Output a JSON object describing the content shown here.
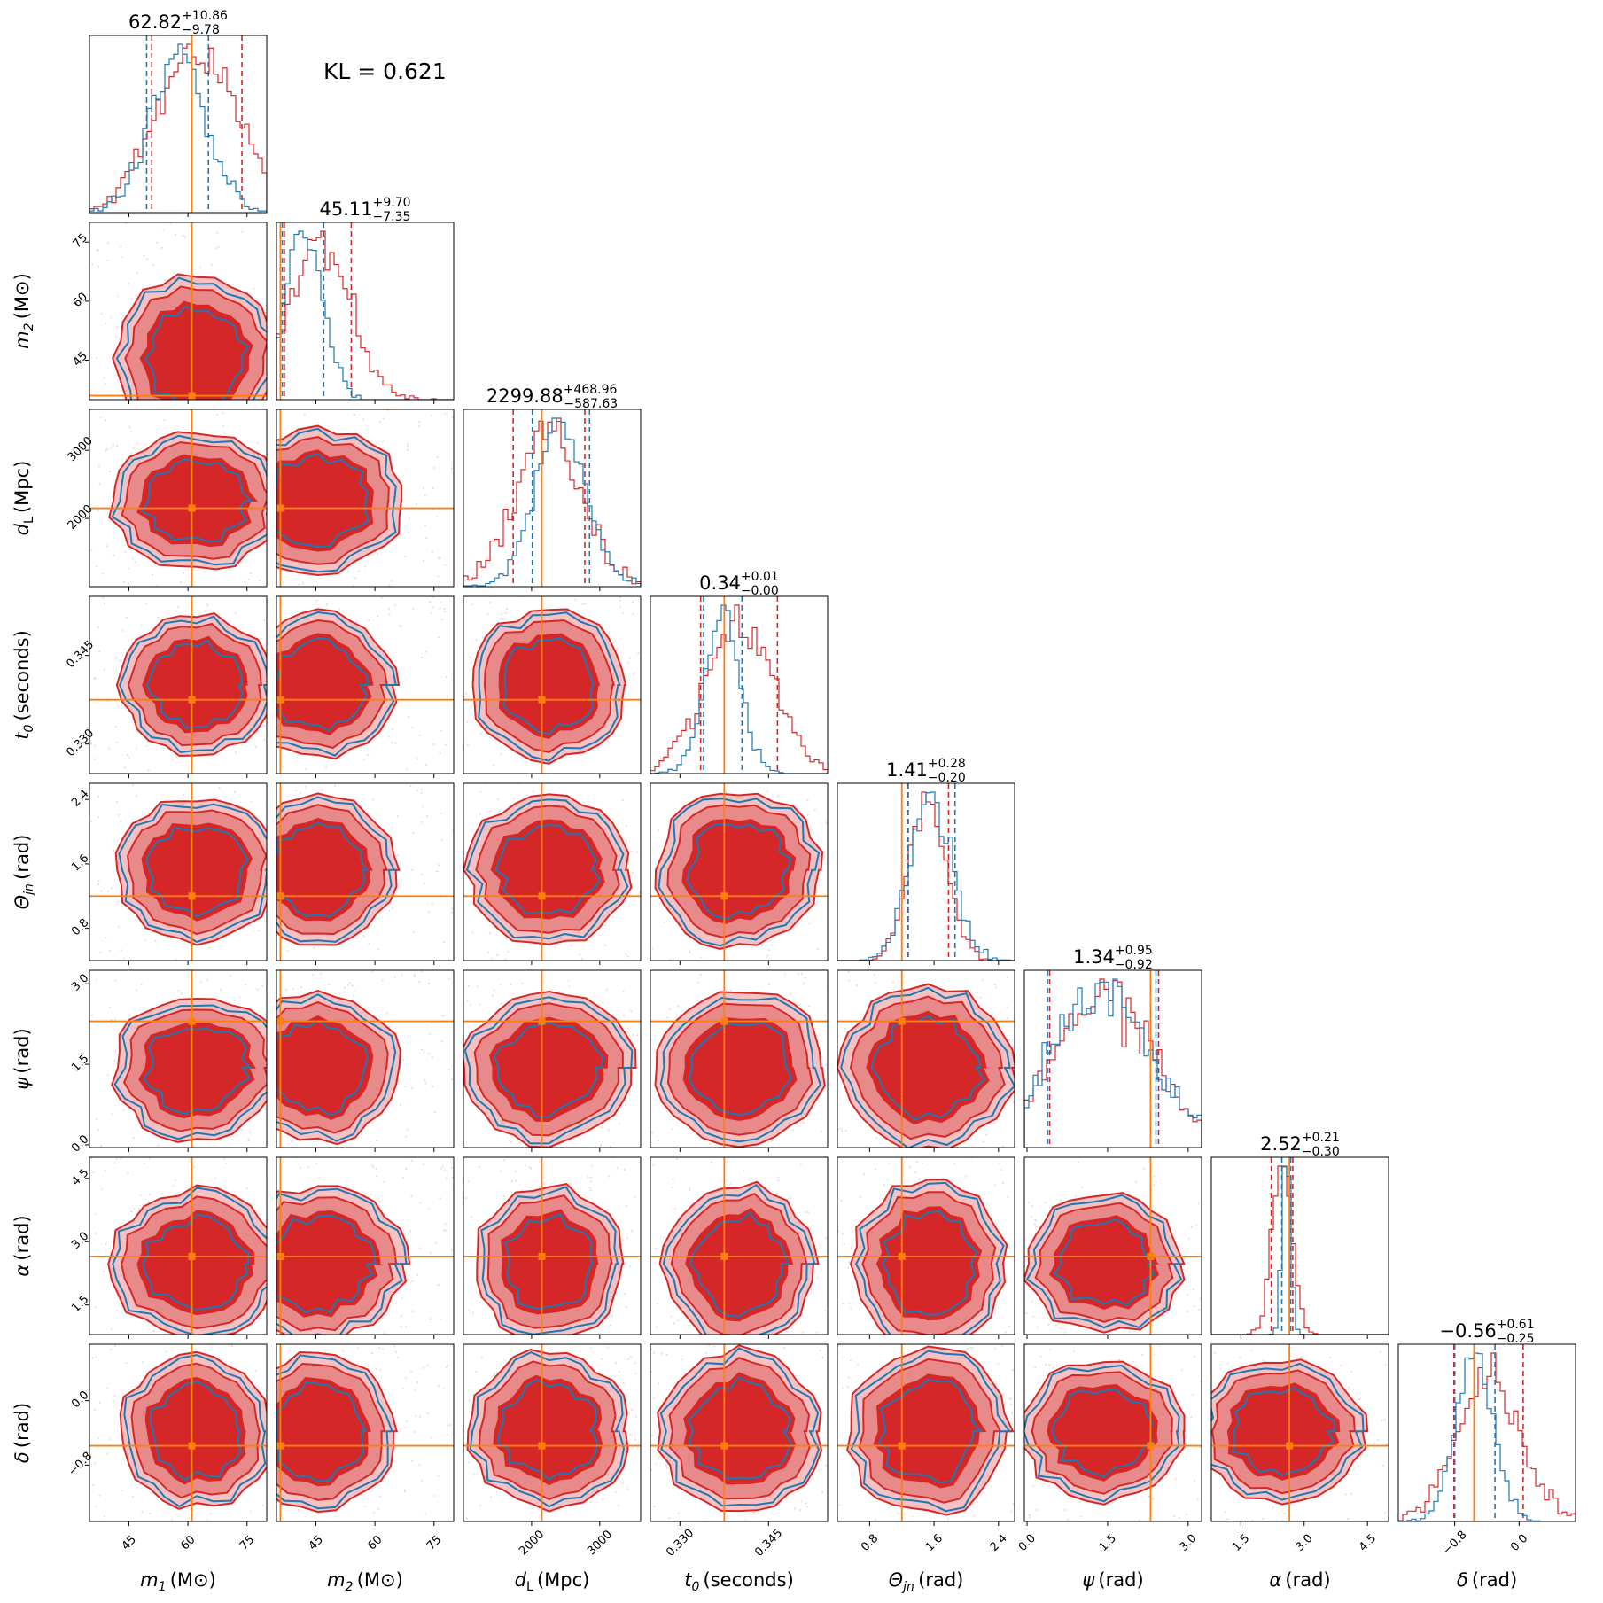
{
  "annotation": {
    "text": "KL = 0.621"
  },
  "colors": {
    "series_a": "#d62728",
    "series_b": "#1f77b4",
    "truth": "#ff7f0e"
  },
  "chart_data": {
    "type": "corner",
    "series": [
      {
        "color": "#d62728"
      },
      {
        "color": "#1f77b4"
      }
    ],
    "parameters": [
      {
        "label": "m",
        "sub": "1",
        "unit": "(M⊙)",
        "range": [
          35,
          80
        ],
        "ticks": [
          45,
          60,
          75
        ],
        "tick_labels": [
          "45",
          "60",
          "75"
        ],
        "truth": 61,
        "summary": {
          "median": "62.82",
          "plus": "+10.86",
          "minus": "−9.78"
        },
        "quantiles_a": [
          50.8,
          73.7
        ],
        "quantiles_b": [
          49.5,
          65.2
        ]
      },
      {
        "label": "m",
        "sub": "2",
        "unit": "(M⊙)",
        "range": [
          35,
          80
        ],
        "ticks": [
          45,
          60,
          75
        ],
        "tick_labels": [
          "45",
          "60",
          "75"
        ],
        "truth": 36,
        "summary": {
          "median": "45.11",
          "plus": "+9.70",
          "minus": "−7.35"
        },
        "quantiles_a": [
          37.0,
          54.0
        ],
        "quantiles_b": [
          36.5,
          47.0
        ]
      },
      {
        "label": "d",
        "sub": "L",
        "unit": "(Mpc)",
        "range": [
          1000,
          3600
        ],
        "ticks": [
          2000,
          3000
        ],
        "tick_labels": [
          "2000",
          "3000"
        ],
        "truth": 2150,
        "summary": {
          "median": "2299.88",
          "plus": "+468.96",
          "minus": "−587.63"
        },
        "quantiles_a": [
          1730,
          2780
        ],
        "quantiles_b": [
          2010,
          2850
        ]
      },
      {
        "label": "t",
        "sub": "0",
        "unit": "(seconds)",
        "range": [
          0.325,
          0.355
        ],
        "ticks": [
          0.33,
          0.345
        ],
        "tick_labels": [
          "0.330",
          "0.345"
        ],
        "truth": 0.3375,
        "summary": {
          "median": "0.34",
          "plus": "+0.01",
          "minus": "−0.00"
        },
        "quantiles_a": [
          0.3335,
          0.3465
        ],
        "quantiles_b": [
          0.334,
          0.3405
        ]
      },
      {
        "label": "Θ",
        "sub": "jn",
        "unit": "(rad)",
        "range": [
          0.4,
          2.6
        ],
        "ticks": [
          0.8,
          1.6,
          2.4
        ],
        "tick_labels": [
          "0.8",
          "1.6",
          "2.4"
        ],
        "truth": 1.2,
        "summary": {
          "median": "1.41",
          "plus": "+0.28",
          "minus": "−0.20"
        },
        "quantiles_a": [
          1.27,
          1.78
        ],
        "quantiles_b": [
          1.28,
          1.86
        ]
      },
      {
        "label": "ψ",
        "sub": "",
        "unit": "(rad)",
        "range": [
          -0.05,
          3.25
        ],
        "ticks": [
          0,
          1.5,
          3.0
        ],
        "tick_labels": [
          "0.0",
          "1.5",
          "3.0"
        ],
        "truth": 2.3,
        "summary": {
          "median": "1.34",
          "plus": "+0.95",
          "minus": "−0.92"
        },
        "quantiles_a": [
          0.42,
          2.45
        ],
        "quantiles_b": [
          0.38,
          2.4
        ]
      },
      {
        "label": "α",
        "sub": "",
        "unit": "(rad)",
        "range": [
          0.8,
          5.0
        ],
        "ticks": [
          1.5,
          3.0,
          4.5
        ],
        "tick_labels": [
          "1.5",
          "3.0",
          "4.5"
        ],
        "truth": 2.65,
        "summary": {
          "median": "2.52",
          "plus": "+0.21",
          "minus": "−0.30"
        },
        "quantiles_a": [
          2.22,
          2.73
        ],
        "quantiles_b": [
          2.47,
          2.68
        ]
      },
      {
        "label": "δ",
        "sub": "",
        "unit": "(rad)",
        "range": [
          -1.5,
          0.7
        ],
        "ticks": [
          -0.8,
          0.0
        ],
        "tick_labels": [
          "−0.8",
          "0.0"
        ],
        "truth": -0.56,
        "summary": {
          "median": "−0.56",
          "plus": "+0.61",
          "minus": "−0.25"
        },
        "quantiles_a": [
          -0.81,
          0.05
        ],
        "quantiles_b": [
          -0.8,
          -0.3
        ]
      }
    ]
  }
}
